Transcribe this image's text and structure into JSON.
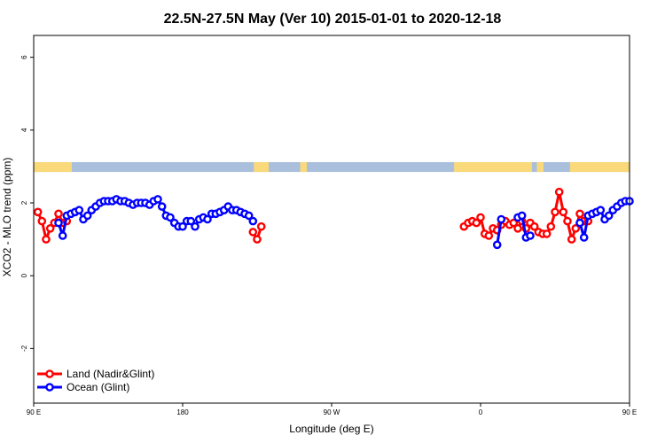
{
  "chart_data": {
    "type": "line",
    "title": "22.5N-27.5N May (Ver 10)   2015-01-01 to 2020-12-18",
    "xlabel": "Longitude (deg E)",
    "ylabel": "XCO2 - MLO trend (ppm)",
    "xlim": [
      90,
      450
    ],
    "ylim": [
      -3.5,
      6.6
    ],
    "x_ticks": [
      {
        "value": 90,
        "label": "90 E"
      },
      {
        "value": 180,
        "label": "180"
      },
      {
        "value": 270,
        "label": "90 W"
      },
      {
        "value": 360,
        "label": "0"
      },
      {
        "value": 450,
        "label": "90 E"
      },
      {
        "value": 540,
        "label": "180"
      }
    ],
    "y_ticks": [
      {
        "value": -2,
        "label": "-2"
      },
      {
        "value": 0,
        "label": "0"
      },
      {
        "value": 2,
        "label": "2"
      },
      {
        "value": 4,
        "label": "4"
      },
      {
        "value": 6,
        "label": "6"
      }
    ],
    "land_ocean_strip": {
      "y_range": [
        2.85,
        3.12
      ],
      "ocean_color": "#a9bfdc",
      "land_color": "#fad97a",
      "land_segments": [
        [
          90,
          113
        ],
        [
          223,
          232
        ],
        [
          251,
          255
        ],
        [
          344,
          391
        ],
        [
          394,
          398
        ],
        [
          414,
          453
        ],
        [
          511,
          540
        ]
      ]
    },
    "legend": {
      "position": "bottom-left"
    },
    "series": [
      {
        "name": "Land (Nadir&Glint)",
        "color": "#ff0000",
        "segments": [
          [
            [
              92.5,
              1.75
            ],
            [
              95,
              1.5
            ],
            [
              97.5,
              1.0
            ],
            [
              100,
              1.3
            ],
            [
              102.5,
              1.45
            ],
            [
              105,
              1.7
            ],
            [
              107.5,
              1.45
            ],
            [
              110,
              1.5
            ]
          ],
          [
            [
              222.5,
              1.2
            ],
            [
              225,
              1.0
            ],
            [
              227.5,
              1.35
            ]
          ],
          [
            [
              350,
              1.35
            ],
            [
              352.5,
              1.45
            ],
            [
              355,
              1.5
            ],
            [
              357.5,
              1.45
            ],
            [
              360,
              1.6
            ],
            [
              362.5,
              1.15
            ],
            [
              365,
              1.1
            ],
            [
              367.5,
              1.3
            ],
            [
              370,
              1.25
            ],
            [
              372.5,
              1.4
            ],
            [
              375,
              1.5
            ],
            [
              377.5,
              1.4
            ],
            [
              380,
              1.45
            ],
            [
              382.5,
              1.3
            ],
            [
              385,
              1.5
            ],
            [
              387.5,
              1.3
            ],
            [
              390,
              1.45
            ],
            [
              392.5,
              1.35
            ],
            [
              395,
              1.2
            ],
            [
              397.5,
              1.15
            ],
            [
              400,
              1.15
            ],
            [
              402.5,
              1.35
            ],
            [
              405,
              1.75
            ],
            [
              407.5,
              2.3
            ],
            [
              410,
              1.75
            ],
            [
              412.5,
              1.5
            ],
            [
              415,
              1.0
            ],
            [
              417.5,
              1.3
            ],
            [
              420,
              1.7
            ],
            [
              422.5,
              1.5
            ],
            [
              425,
              1.5
            ]
          ]
        ]
      },
      {
        "name": "Ocean (Glint)",
        "color": "#0000ff",
        "segments": [
          [
            [
              105,
              1.45
            ],
            [
              107.5,
              1.1
            ],
            [
              110,
              1.65
            ],
            [
              112.5,
              1.7
            ],
            [
              115,
              1.75
            ],
            [
              117.5,
              1.8
            ],
            [
              120,
              1.55
            ],
            [
              122.5,
              1.65
            ],
            [
              125,
              1.8
            ],
            [
              127.5,
              1.9
            ],
            [
              130,
              2.0
            ],
            [
              132.5,
              2.05
            ],
            [
              135,
              2.05
            ],
            [
              137.5,
              2.05
            ],
            [
              140,
              2.1
            ],
            [
              142.5,
              2.05
            ],
            [
              145,
              2.05
            ],
            [
              147.5,
              2.0
            ],
            [
              150,
              1.95
            ],
            [
              152.5,
              2.0
            ],
            [
              155,
              2.0
            ],
            [
              157.5,
              2.0
            ],
            [
              160,
              1.95
            ],
            [
              162.5,
              2.05
            ],
            [
              165,
              2.1
            ],
            [
              167.5,
              1.9
            ],
            [
              170,
              1.65
            ],
            [
              172.5,
              1.6
            ],
            [
              175,
              1.45
            ],
            [
              177.5,
              1.35
            ],
            [
              180,
              1.35
            ],
            [
              182.5,
              1.5
            ],
            [
              185,
              1.5
            ],
            [
              187.5,
              1.35
            ],
            [
              190,
              1.55
            ],
            [
              192.5,
              1.6
            ],
            [
              195,
              1.55
            ],
            [
              197.5,
              1.7
            ],
            [
              200,
              1.7
            ],
            [
              202.5,
              1.75
            ],
            [
              205,
              1.8
            ],
            [
              207.5,
              1.9
            ],
            [
              210,
              1.8
            ],
            [
              212.5,
              1.8
            ],
            [
              215,
              1.75
            ],
            [
              217.5,
              1.7
            ],
            [
              220,
              1.65
            ],
            [
              222.5,
              1.5
            ]
          ],
          [
            [
              370,
              0.85
            ],
            [
              372.5,
              1.55
            ]
          ],
          [
            [
              382.5,
              1.6
            ],
            [
              385,
              1.65
            ],
            [
              387.5,
              1.05
            ],
            [
              390,
              1.1
            ]
          ],
          [
            [
              420,
              1.45
            ],
            [
              422.5,
              1.05
            ],
            [
              425,
              1.65
            ],
            [
              427.5,
              1.7
            ],
            [
              430,
              1.75
            ],
            [
              432.5,
              1.8
            ],
            [
              435,
              1.55
            ],
            [
              437.5,
              1.65
            ],
            [
              440,
              1.8
            ],
            [
              442.5,
              1.9
            ],
            [
              445,
              2.0
            ],
            [
              447.5,
              2.05
            ],
            [
              450,
              2.05
            ]
          ]
        ]
      }
    ]
  }
}
